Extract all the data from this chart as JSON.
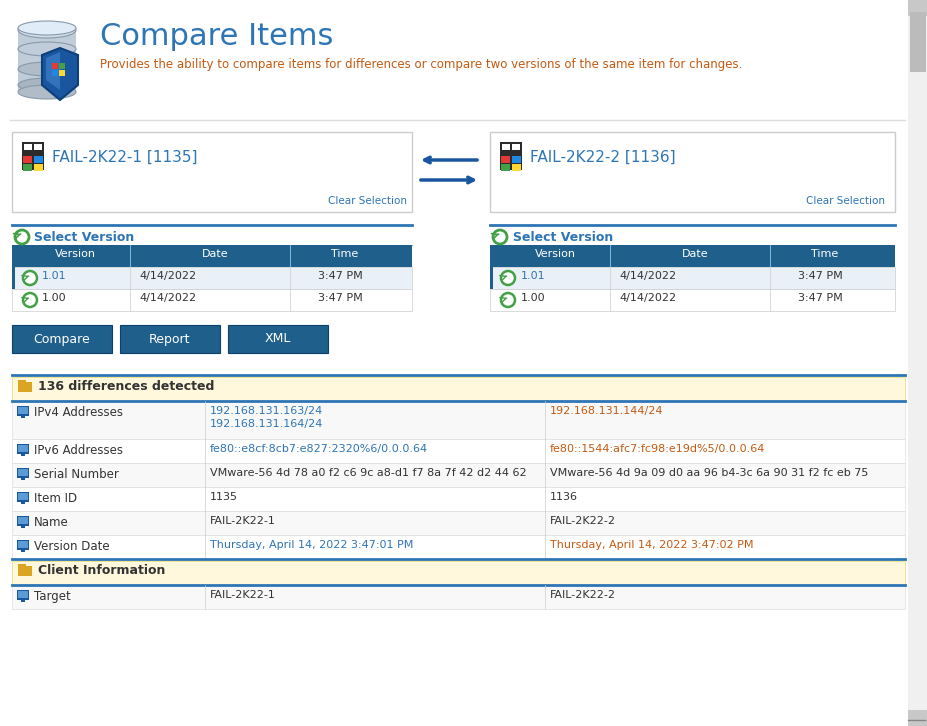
{
  "title": "Compare Items",
  "subtitle": "Provides the ability to compare items for differences or compare two versions of the same item for changes.",
  "title_color": "#2E75B6",
  "subtitle_color": "#C55A11",
  "server1_name": "FAIL-2K22-1 [1135]",
  "server2_name": "FAIL-2K22-2 [1136]",
  "server_name_color": "#2E75B6",
  "table_header_bg": "#1F5F8B",
  "table_header_color": "#FFFFFF",
  "table_row1_bg": "#EAF0F7",
  "table_row2_bg": "#FFFFFF",
  "button_bg": "#1F5F8B",
  "buttons": [
    "Compare",
    "Report",
    "XML"
  ],
  "diff_count": "136 differences detected",
  "diff_section_bg": "#FFF8DC",
  "diff_rows": [
    {
      "label": "IPv4 Addresses",
      "val1": "192.168.131.163/24\n192.168.131.164/24",
      "val2": "192.168.131.144/24",
      "val1_color": "#2E75B6",
      "val2_color": "#C55A11",
      "tall": true
    },
    {
      "label": "IPv6 Addresses",
      "val1": "fe80::e8cf:8cb7:e827:2320%6/0.0.0.64",
      "val2": "fe80::1544:afc7:fc98:e19d%5/0.0.0.64",
      "val1_color": "#2E75B6",
      "val2_color": "#C55A11",
      "tall": false
    },
    {
      "label": "Serial Number",
      "val1": "VMware-56 4d 78 a0 f2 c6 9c a8-d1 f7 8a 7f 42 d2 44 62",
      "val2": "VMware-56 4d 9a 09 d0 aa 96 b4-3c 6a 90 31 f2 fc eb 75",
      "val1_color": "#333333",
      "val2_color": "#333333",
      "tall": false
    },
    {
      "label": "Item ID",
      "val1": "1135",
      "val2": "1136",
      "val1_color": "#333333",
      "val2_color": "#333333",
      "tall": false
    },
    {
      "label": "Name",
      "val1": "FAIL-2K22-1",
      "val2": "FAIL-2K22-2",
      "val1_color": "#333333",
      "val2_color": "#333333",
      "tall": false
    },
    {
      "label": "Version Date",
      "val1": "Thursday, April 14, 2022 3:47:01 PM",
      "val2": "Thursday, April 14, 2022 3:47:02 PM",
      "val1_color": "#2E75B6",
      "val2_color": "#C55A11",
      "tall": false
    }
  ],
  "client_info_rows": [
    {
      "label": "Target",
      "val1": "FAIL-2K22-1",
      "val2": "FAIL-2K22-2",
      "val1_color": "#333333",
      "val2_color": "#333333",
      "tall": false
    }
  ],
  "outer_bg": "#F4F4F4",
  "content_bg": "#FFFFFF",
  "border_color": "#CCCCCC",
  "blue_line_color": "#2E75B6",
  "scrollbar_bg": "#F0F0F0",
  "scrollbar_thumb": "#BBBBBB"
}
